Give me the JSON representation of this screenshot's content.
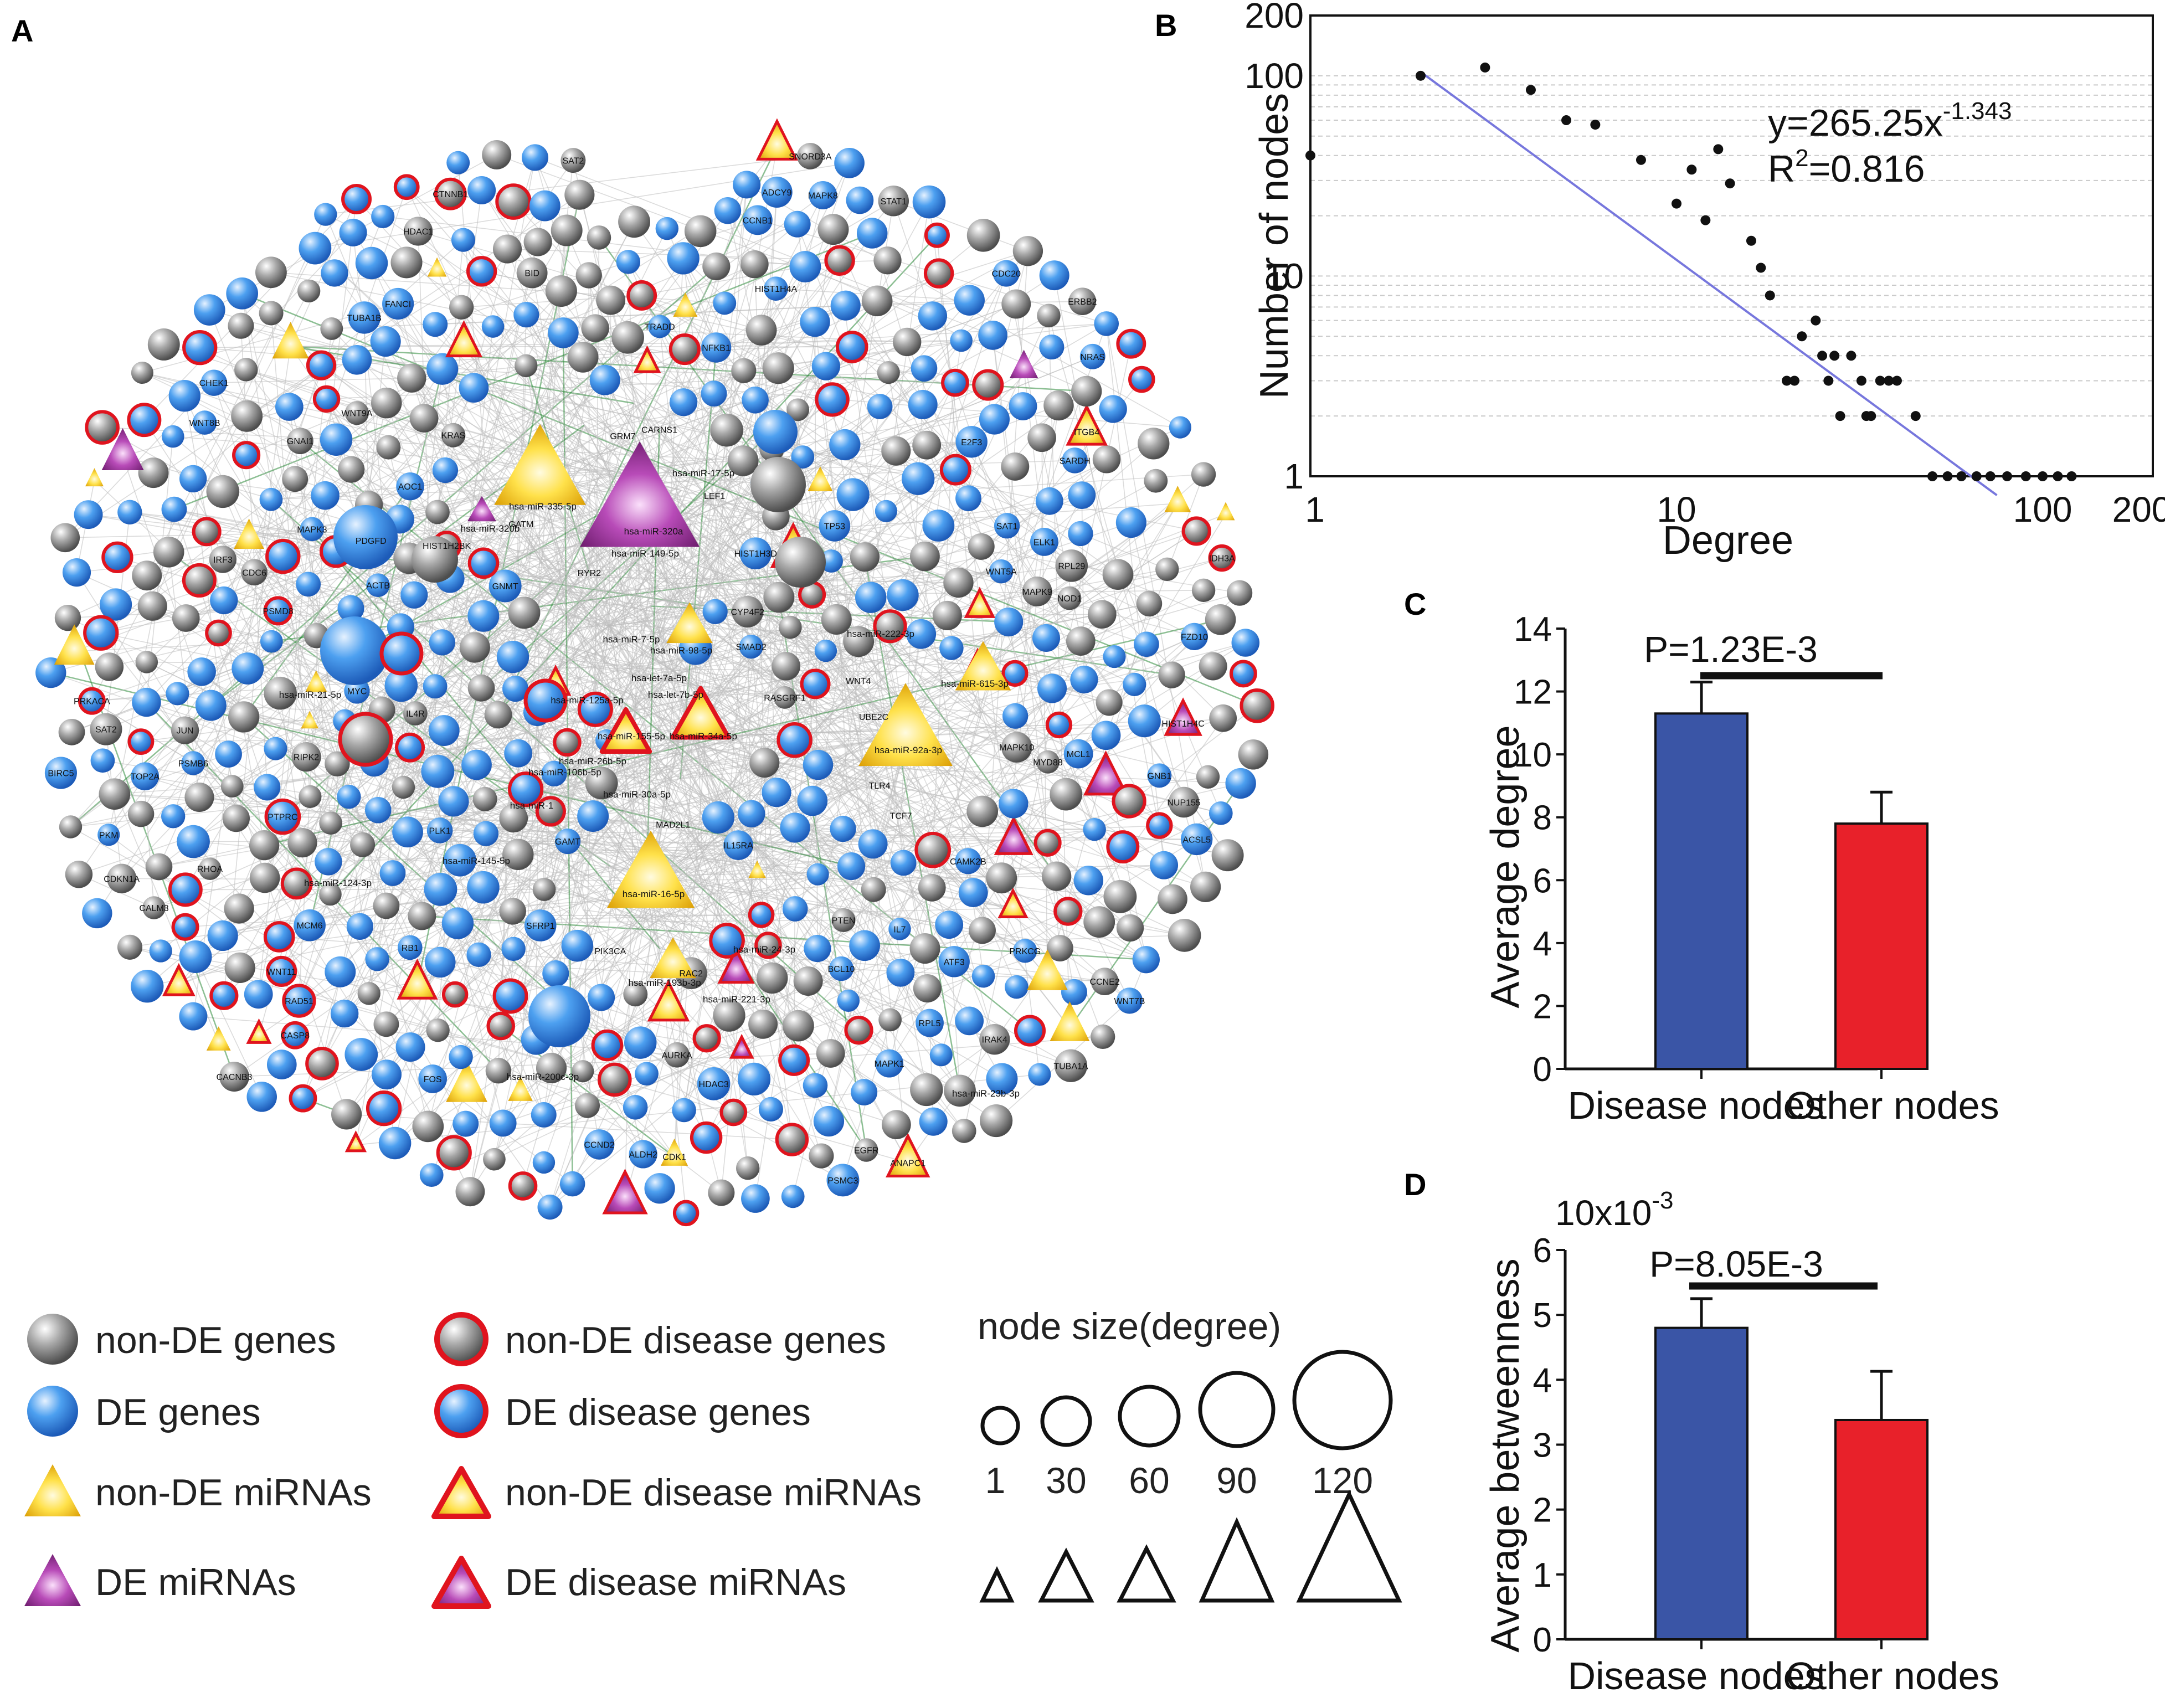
{
  "colors": {
    "gene_grey": "#8a8a8a",
    "gene_blue": "#3c8fe6",
    "mirna_yellow": "#f2c21a",
    "mirna_purple": "#9b2d9b",
    "disease_red": "#e0141e",
    "bar_blue": "#3a55a6",
    "bar_red": "#e8212a",
    "fit_line": "#7777dd",
    "edge_grey": "#bdbdbd",
    "edge_green": "#2e8b3a"
  },
  "panels": {
    "a": "A",
    "b": "B",
    "c": "C",
    "d": "D"
  },
  "network": {
    "node_labels": [
      "ALDH2",
      "GATM",
      "GNMT",
      "AOC1",
      "SAT1",
      "GAMT",
      "CARNS1",
      "SARDH",
      "SAT2",
      "CYP4F2",
      "SAT2",
      "ACSL5",
      "MAPK3",
      "MAPK9",
      "NRAS",
      "MYC",
      "EGFR",
      "PKM",
      "FZD10",
      "SFRP1",
      "WNT8B",
      "WNT9A",
      "WNT11",
      "TCF7",
      "CTNNB1",
      "GNB1",
      "MAPK1",
      "CAMK2B",
      "CALM3",
      "PIK3CA",
      "CDKN1A",
      "SMAD2",
      "KRAS",
      "RAC2",
      "ERBB2",
      "STAT1",
      "PDGFD",
      "RHOA",
      "ACTB",
      "E2F3",
      "RB1",
      "PTEN",
      "HDAC1",
      "HDAC3",
      "ATF3",
      "CCND2",
      "FOS",
      "JUN",
      "TP53",
      "CDK1",
      "CCNB1",
      "ANAPC1",
      "TUBA1A",
      "TUBA1B",
      "HIST1H4A",
      "HIST1H4C",
      "HIST1H2BK",
      "HIST1H3D",
      "PSMD8",
      "PSMC3",
      "PSMB6",
      "IL7",
      "ITGB4",
      "BID",
      "LEF1",
      "NFKB1",
      "ELK1",
      "TLR4",
      "GNAI1",
      "IDH3A",
      "WNT5A",
      "WNT7B",
      "WNT4",
      "UBE2C",
      "CDC20",
      "MAD2L1",
      "FANCI",
      "NUP155",
      "RPL5",
      "RPL29",
      "SNORD3A",
      "GRM7",
      "CACNB3",
      "RYR2",
      "PRKCG",
      "PRKACA",
      "ADCY9",
      "MAPK10",
      "MAPK8",
      "RASGRF1",
      "MCL1",
      "BCL10",
      "NOD1",
      "IRF3",
      "IRAK4",
      "CASP8",
      "TRADD",
      "RIPK2",
      "IL4R",
      "IL15RA",
      "PTPRC",
      "MYD88",
      "CCNE2",
      "CDC6",
      "MCM6",
      "RAD51",
      "BIRC5",
      "CHEK1",
      "AURKA",
      "PLK1",
      "TOP2A"
    ],
    "mirna_labels": [
      "hsa-miR-320a",
      "hsa-miR-335-5p",
      "hsa-miR-149-5p",
      "hsa-miR-320b",
      "hsa-miR-615-3p",
      "hsa-miR-92a-3p",
      "hsa-miR-16-5p",
      "hsa-miR-155-5p",
      "hsa-miR-34a-5p",
      "hsa-miR-26b-5p",
      "hsa-miR-21-5p",
      "hsa-miR-124-3p",
      "hsa-miR-1",
      "hsa-miR-30a-5p",
      "hsa-miR-98-5p",
      "hsa-miR-7-5p",
      "hsa-miR-17-5p",
      "hsa-miR-145-5p",
      "hsa-miR-193b-3p",
      "hsa-miR-221-3p",
      "hsa-miR-222-3p",
      "hsa-miR-106b-5p",
      "hsa-miR-125a-5p",
      "hsa-let-7a-5p",
      "hsa-let-7b-5p",
      "hsa-miR-200c-3p",
      "hsa-miR-24-3p",
      "hsa-miR-23b-3p"
    ]
  },
  "legend": {
    "items": [
      {
        "label": "non-DE genes",
        "shape": "circle",
        "fill": "grey",
        "border": "none"
      },
      {
        "label": "non-DE disease genes",
        "shape": "circle",
        "fill": "grey",
        "border": "red"
      },
      {
        "label": "DE genes",
        "shape": "circle",
        "fill": "blue",
        "border": "none"
      },
      {
        "label": "DE disease genes",
        "shape": "circle",
        "fill": "blue",
        "border": "red"
      },
      {
        "label": "non-DE miRNAs",
        "shape": "triangle",
        "fill": "yellow",
        "border": "none"
      },
      {
        "label": "non-DE disease miRNAs",
        "shape": "triangle",
        "fill": "yellow",
        "border": "red"
      },
      {
        "label": "DE miRNAs",
        "shape": "triangle",
        "fill": "purple",
        "border": "none"
      },
      {
        "label": "DE disease miRNAs",
        "shape": "triangle",
        "fill": "purple",
        "border": "red"
      }
    ],
    "size_title": "node size(degree)",
    "size_values": [
      "1",
      "30",
      "60",
      "90",
      "120"
    ]
  },
  "chart_data": [
    {
      "panel": "B",
      "type": "scatter",
      "scale": "log-log",
      "xlabel": "Degree",
      "ylabel": "Number of nodes",
      "xlim": [
        1,
        200
      ],
      "ylim": [
        1,
        200
      ],
      "x_ticks": [
        "1",
        "10",
        "100",
        "200"
      ],
      "y_ticks": [
        "1",
        "10",
        "100",
        "200"
      ],
      "equation": {
        "prefix": "y=265.25x",
        "exponent": "-1.343"
      },
      "r_squared": {
        "prefix": "R",
        "sup": "2",
        "value": "=0.816"
      },
      "fit": {
        "a": 265.25,
        "b": -1.343,
        "x_range": [
          2,
          75
        ]
      },
      "points": [
        [
          1,
          40
        ],
        [
          2,
          100
        ],
        [
          3,
          110
        ],
        [
          4,
          85
        ],
        [
          5,
          60
        ],
        [
          6,
          57
        ],
        [
          8,
          38
        ],
        [
          10,
          23
        ],
        [
          11,
          34
        ],
        [
          13,
          43
        ],
        [
          12,
          19
        ],
        [
          14,
          29
        ],
        [
          16,
          15
        ],
        [
          17,
          11
        ],
        [
          18,
          8
        ],
        [
          20,
          3
        ],
        [
          21,
          3
        ],
        [
          22,
          5
        ],
        [
          24,
          6
        ],
        [
          25,
          4
        ],
        [
          26,
          3
        ],
        [
          27,
          4
        ],
        [
          28,
          2
        ],
        [
          30,
          4
        ],
        [
          32,
          3
        ],
        [
          33,
          2
        ],
        [
          34,
          2
        ],
        [
          36,
          3
        ],
        [
          38,
          3
        ],
        [
          40,
          3
        ],
        [
          45,
          2
        ],
        [
          50,
          1
        ],
        [
          55,
          1
        ],
        [
          60,
          1
        ],
        [
          66,
          1
        ],
        [
          72,
          1
        ],
        [
          80,
          1
        ],
        [
          90,
          1
        ],
        [
          100,
          1
        ],
        [
          110,
          1
        ],
        [
          120,
          1
        ]
      ]
    },
    {
      "panel": "C",
      "type": "bar",
      "categories": [
        "Disease nodes",
        "Other nodes"
      ],
      "values": [
        11.3,
        7.8
      ],
      "errors": [
        1.0,
        1.0
      ],
      "ylabel": "Average degree",
      "ylim": [
        0,
        14
      ],
      "y_ticks": [
        "0",
        "2",
        "4",
        "6",
        "8",
        "10",
        "12",
        "14"
      ],
      "annotation": "P=1.23E-3"
    },
    {
      "panel": "D",
      "type": "bar",
      "categories": [
        "Disease nodes",
        "Other nodes"
      ],
      "values": [
        4.8,
        3.38
      ],
      "errors": [
        0.45,
        0.75
      ],
      "ylabel": "Average betweenness",
      "ylim": [
        0,
        6
      ],
      "y_ticks": [
        "0",
        "1",
        "2",
        "3",
        "4",
        "5",
        "6"
      ],
      "scale_prefix": "10x10",
      "scale_exponent": "-3",
      "annotation": "P=8.05E-3"
    }
  ]
}
